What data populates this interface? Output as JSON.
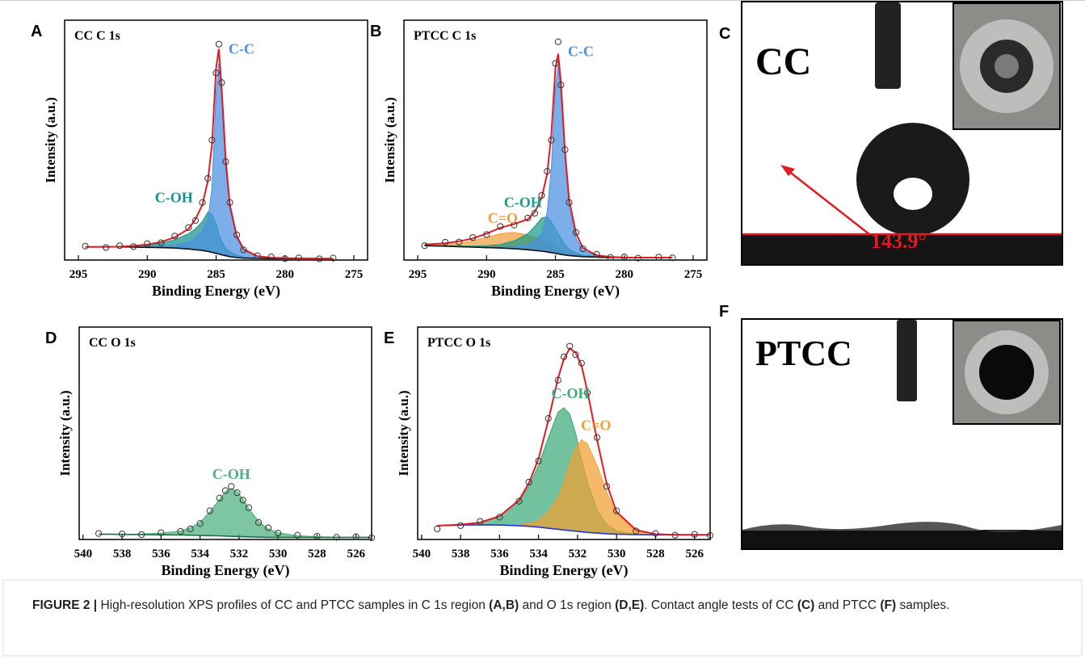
{
  "chart_data": [
    {
      "type": "line",
      "panel": "A",
      "title": "CC C 1s",
      "xlabel": "Binding Energy (eV)",
      "ylabel": "Intensity (a.u.)",
      "xlim": [
        296,
        274
      ],
      "xticks": [
        295,
        290,
        285,
        280,
        275
      ],
      "ylim": [
        0,
        100
      ],
      "x": [
        294.5,
        293,
        292,
        291,
        290,
        289,
        288,
        287,
        286.5,
        286,
        285.6,
        285.3,
        285,
        284.8,
        284.6,
        284.3,
        284,
        283.5,
        283,
        282,
        281,
        280,
        279,
        277.5,
        276.5
      ],
      "series": [
        {
          "name": "C-OH",
          "color": "#16928e",
          "fill": true,
          "values": [
            5.5,
            5.5,
            5.6,
            5.8,
            6.2,
            7,
            8.5,
            11,
            13,
            16,
            20,
            19,
            15,
            11,
            8,
            5,
            3.5,
            2,
            1.2,
            0.8,
            0.7,
            0.6,
            0.6,
            0.6,
            0.6
          ]
        },
        {
          "name": "C-C",
          "color": "#4a90e2",
          "fill": true,
          "values": [
            5.5,
            5.5,
            5.5,
            5.5,
            5.6,
            5.8,
            6.3,
            7.5,
            9,
            12,
            17,
            30,
            70,
            82,
            68,
            38,
            21,
            9,
            4,
            1.5,
            0.9,
            0.7,
            0.6,
            0.6,
            0.6
          ]
        },
        {
          "color": "#111111",
          "baseline": true,
          "values": [
            5.5,
            5.5,
            5.5,
            5.4,
            5.3,
            5.2,
            5,
            4.6,
            4.3,
            4,
            3.6,
            3.2,
            2.8,
            2.5,
            2.2,
            1.8,
            1.4,
            1,
            0.8,
            0.7,
            0.6,
            0.6,
            0.6,
            0.6,
            0.6
          ]
        },
        {
          "color": "#e01b24",
          "values": [
            5.5,
            5.5,
            5.6,
            5.9,
            6.5,
            7.5,
            9.5,
            13,
            17,
            23,
            33,
            48,
            80,
            88,
            72,
            42,
            23,
            10,
            4.5,
            1.6,
            1,
            0.8,
            0.7,
            0.6,
            0.6
          ]
        },
        {
          "color": "#333333",
          "marker": "circle",
          "values": [
            5.8,
            5.2,
            6,
            5.6,
            6.8,
            7.2,
            10,
            13.5,
            16.5,
            24,
            34,
            50,
            78,
            90,
            74,
            41,
            24,
            10.5,
            4.2,
            1.8,
            1.3,
            0.6,
            0.9,
            0.5,
            0.8
          ]
        }
      ]
    },
    {
      "type": "line",
      "panel": "B",
      "title": "PTCC C 1s",
      "xlabel": "Binding Energy (eV)",
      "ylabel": "Intensity (a.u.)",
      "xlim": [
        296,
        274
      ],
      "xticks": [
        295,
        290,
        285,
        280,
        275
      ],
      "ylim": [
        0,
        100
      ],
      "x": [
        294.5,
        293,
        292,
        291,
        290,
        289,
        288,
        287,
        286.5,
        286,
        285.6,
        285.3,
        285,
        284.8,
        284.6,
        284.3,
        284,
        283.5,
        283,
        282,
        281,
        280,
        279,
        277.5,
        276.5
      ],
      "series": [
        {
          "name": "C=O",
          "color": "#f0a040",
          "fill": true,
          "values": [
            6.2,
            6.5,
            7,
            8,
            9.5,
            11,
            11.5,
            10.5,
            9.5,
            8.5,
            7.5,
            6.5,
            5.5,
            5,
            4.5,
            3.8,
            3.2,
            2.5,
            2,
            1.5,
            1.2,
            1,
            1,
            1,
            1
          ]
        },
        {
          "name": "C-OH",
          "color": "#1b9a84",
          "fill": true,
          "values": [
            6,
            5.9,
            5.8,
            5.8,
            6,
            6.5,
            8,
            11,
            14,
            17.5,
            18,
            16,
            13,
            11,
            9,
            6.5,
            4.5,
            3,
            2,
            1.5,
            1.2,
            1,
            1,
            1,
            1
          ]
        },
        {
          "name": "C-C",
          "color": "#4a90e2",
          "fill": true,
          "values": [
            6,
            5.8,
            5.6,
            5.5,
            5.4,
            5.4,
            5.6,
            6.5,
            8,
            11,
            20,
            38,
            72,
            81,
            70,
            42,
            22,
            9,
            4,
            1.8,
            1.2,
            1,
            1,
            1,
            1
          ]
        },
        {
          "color": "#111111",
          "baseline": true,
          "values": [
            6,
            5.8,
            5.6,
            5.4,
            5.2,
            5,
            4.7,
            4.3,
            4,
            3.7,
            3.4,
            3.1,
            2.8,
            2.6,
            2.4,
            2.1,
            1.9,
            1.6,
            1.4,
            1.2,
            1,
            1,
            1,
            1,
            1
          ]
        },
        {
          "color": "#e01b24",
          "values": [
            6.5,
            7,
            7.8,
            9,
            11,
            13.5,
            15,
            17,
            20,
            26,
            36,
            52,
            80,
            86,
            74,
            45,
            25,
            11,
            5,
            2,
            1.3,
            1,
            1,
            1,
            1
          ]
        },
        {
          "color": "#333333",
          "marker": "circle",
          "values": [
            6,
            7.4,
            7.5,
            9.4,
            10.6,
            14,
            14.6,
            17.5,
            19.5,
            27,
            37,
            50,
            82,
            91,
            73,
            46,
            24,
            11.5,
            4.7,
            2.4,
            1.1,
            1.3,
            0.8,
            1.2,
            0.9
          ]
        }
      ]
    },
    {
      "type": "line",
      "panel": "D",
      "title": "CC O 1s",
      "xlabel": "Binding Energy (eV)",
      "ylabel": "Intensity (a.u.)",
      "xlim": [
        540.2,
        525.2
      ],
      "xticks": [
        540,
        538,
        536,
        534,
        532,
        530,
        528,
        526
      ],
      "ylim": [
        0,
        100
      ],
      "x": [
        539.2,
        538,
        537,
        536,
        535,
        534.5,
        534,
        533.5,
        533,
        532.7,
        532.4,
        532.1,
        531.8,
        531.5,
        531,
        530.5,
        530,
        529,
        528,
        527,
        526,
        525.2
      ],
      "series": [
        {
          "name": "C-OH",
          "color": "#4caf7d",
          "fill": true,
          "values": [
            2.5,
            2.5,
            2.6,
            3,
            4,
            5.5,
            8,
            13,
            19,
            22.5,
            24,
            22.5,
            19,
            14.5,
            8.5,
            5,
            3.2,
            1.8,
            1.3,
            1.1,
            1,
            1
          ]
        },
        {
          "color": "#1f6e47",
          "baseline": true,
          "values": [
            2.5,
            2.4,
            2.3,
            2.2,
            2.1,
            2,
            1.9,
            1.8,
            1.7,
            1.6,
            1.5,
            1.4,
            1.3,
            1.2,
            1.1,
            1,
            1,
            1,
            1,
            1,
            1,
            1
          ]
        },
        {
          "color": "#333333",
          "marker": "circle",
          "values": [
            2.8,
            2.6,
            2.3,
            3.2,
            3.8,
            5,
            7.5,
            13.5,
            19.5,
            23,
            25,
            22,
            18.5,
            15,
            8,
            5.5,
            3,
            2,
            1.5,
            1,
            1.3,
            0.8
          ]
        }
      ]
    },
    {
      "type": "line",
      "panel": "E",
      "title": "PTCC O 1s",
      "xlabel": "Binding Energy (eV)",
      "ylabel": "Intensity (a.u.)",
      "xlim": [
        540.2,
        525.2
      ],
      "xticks": [
        540,
        538,
        536,
        534,
        532,
        530,
        528,
        526
      ],
      "ylim": [
        0,
        100
      ],
      "x": [
        539.2,
        538,
        537,
        536,
        535,
        534.5,
        534,
        533.5,
        533,
        532.7,
        532.4,
        532.1,
        531.8,
        531.5,
        531,
        530.5,
        530,
        529,
        528,
        527,
        526,
        525.2
      ],
      "series": [
        {
          "name": "C-OH",
          "color": "#3fa97a",
          "fill": true,
          "values": [
            6.5,
            7,
            8,
            11,
            18,
            25,
            35,
            48,
            60,
            62,
            59,
            50,
            38,
            27,
            14,
            7,
            4,
            2.5,
            2.2,
            2.2,
            2.2,
            2.2
          ]
        },
        {
          "name": "C=O",
          "color": "#f0a030",
          "fill": true,
          "values": [
            6.5,
            6.8,
            6.9,
            6.9,
            7,
            7.5,
            9,
            13,
            20,
            27,
            36,
            43,
            47,
            45,
            35,
            22,
            12,
            4,
            2.5,
            2.2,
            2.2,
            2.2
          ]
        },
        {
          "color": "#2233dd",
          "baseline": true,
          "values": [
            6.5,
            6.8,
            6.9,
            6.8,
            6.5,
            6.2,
            5.8,
            5.3,
            4.8,
            4.5,
            4.2,
            3.9,
            3.6,
            3.3,
            3,
            2.7,
            2.5,
            2.3,
            2.2,
            2.2,
            2.2,
            2.2
          ]
        },
        {
          "color": "#e01b24",
          "values": [
            6.5,
            7,
            8,
            11,
            18.5,
            26.5,
            38,
            56,
            76,
            85,
            90,
            88,
            82,
            70,
            47,
            26,
            13,
            4.5,
            2.5,
            2.2,
            2.2,
            2.2
          ]
        },
        {
          "color": "#333333",
          "marker": "circle",
          "values": [
            5,
            6.5,
            8.5,
            10.5,
            18,
            27,
            37,
            57,
            75,
            86,
            91,
            87,
            83,
            69,
            48,
            25,
            13.5,
            4,
            2.8,
            2,
            2.4,
            1.9
          ]
        }
      ]
    }
  ],
  "photos": [
    {
      "panel": "C",
      "sample": "CC",
      "angle": "143.9°"
    },
    {
      "panel": "F",
      "sample": "PTCC"
    }
  ],
  "caption": {
    "segments": [
      {
        "text": "FIGURE 2 |",
        "bold": true
      },
      {
        "text": " High-resolution XPS profiles of CC and PTCC samples in C 1s region "
      },
      {
        "text": "(A,B)",
        "bold": true
      },
      {
        "text": " and O 1s region "
      },
      {
        "text": "(D,E)",
        "bold": true
      },
      {
        "text": ". Contact angle tests of CC "
      },
      {
        "text": "(C)",
        "bold": true
      },
      {
        "text": " and PTCC "
      },
      {
        "text": "(F)",
        "bold": true
      },
      {
        "text": " samples."
      }
    ]
  }
}
